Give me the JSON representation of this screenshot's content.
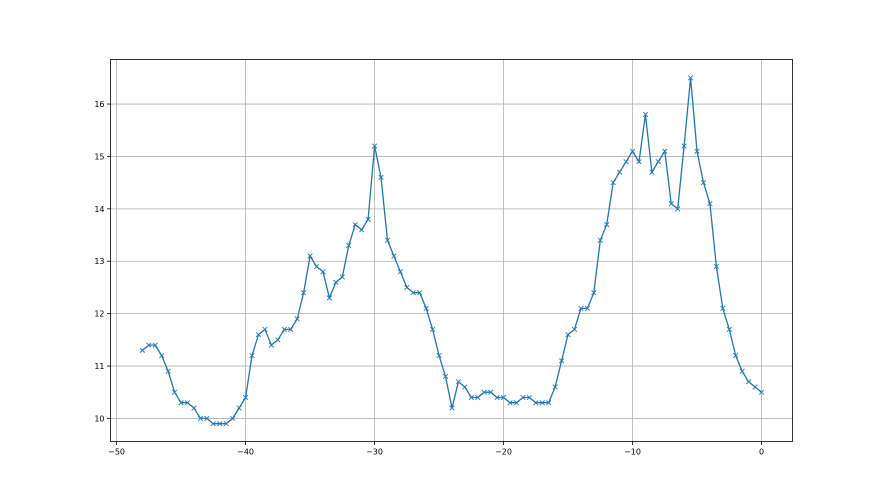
{
  "chart_data": {
    "type": "line",
    "title": "",
    "xlabel": "",
    "ylabel": "",
    "xlim": [
      -50.47,
      2.4
    ],
    "ylim": [
      9.56,
      16.85
    ],
    "grid": true,
    "marker": "x",
    "color": "#1f77b4",
    "xticks": [
      -50,
      -40,
      -30,
      -20,
      -10,
      0
    ],
    "yticks": [
      10,
      11,
      12,
      13,
      14,
      15,
      16
    ],
    "series": [
      {
        "x": [
          -48,
          -47.5,
          -47,
          -46.5,
          -46,
          -45.5,
          -45,
          -44.5,
          -44,
          -43.5,
          -43,
          -42.5,
          -42,
          -41.5,
          -41,
          -40.5,
          -40,
          -39.5,
          -39,
          -38.5,
          -38,
          -37.5,
          -37,
          -36.5,
          -36,
          -35.5,
          -35,
          -34.5,
          -34,
          -33.5,
          -33,
          -32.5,
          -32,
          -31.5,
          -31,
          -30.5,
          -30,
          -29.5,
          -29,
          -28.5,
          -28,
          -27.5,
          -27,
          -26.5,
          -26,
          -25.5,
          -25,
          -24.5,
          -24,
          -23.5,
          -23,
          -22.5,
          -22,
          -21.5,
          -21,
          -20.5,
          -20,
          -19.5,
          -19,
          -18.5,
          -18,
          -17.5,
          -17,
          -16.5,
          -16,
          -15.5,
          -15,
          -14.5,
          -14,
          -13.5,
          -13,
          -12.5,
          -12,
          -11.5,
          -11,
          -10.5,
          -10,
          -9.5,
          -9,
          -8.5,
          -8,
          -7.5,
          -7,
          -6.5,
          -6,
          -5.5,
          -5,
          -4.5,
          -4,
          -3.5,
          -3,
          -2.5,
          -2,
          -1.5,
          -1,
          -0.5,
          0
        ],
        "y": [
          11.3,
          11.4,
          11.4,
          11.2,
          10.9,
          10.5,
          10.3,
          10.3,
          10.2,
          10.0,
          10.0,
          9.9,
          9.9,
          9.9,
          10.0,
          10.2,
          10.4,
          11.2,
          11.6,
          11.7,
          11.4,
          11.5,
          11.7,
          11.7,
          11.9,
          12.4,
          13.1,
          12.9,
          12.8,
          12.3,
          12.6,
          12.7,
          13.3,
          13.7,
          13.6,
          13.8,
          15.2,
          14.6,
          13.4,
          13.1,
          12.8,
          12.5,
          12.4,
          12.4,
          12.1,
          11.7,
          11.2,
          10.8,
          10.2,
          10.7,
          10.6,
          10.4,
          10.4,
          10.5,
          10.5,
          10.4,
          10.4,
          10.3,
          10.3,
          10.4,
          10.4,
          10.3,
          10.3,
          10.3,
          10.6,
          11.1,
          11.6,
          11.7,
          12.1,
          12.1,
          12.4,
          13.4,
          13.7,
          14.5,
          14.7,
          14.9,
          15.1,
          14.9,
          15.8,
          14.7,
          14.9,
          15.1,
          14.1,
          14.0,
          15.2,
          16.5,
          15.1,
          14.5,
          14.1,
          12.9,
          12.1,
          11.7,
          11.2,
          10.9,
          10.7,
          10.6,
          10.5
        ]
      }
    ]
  }
}
